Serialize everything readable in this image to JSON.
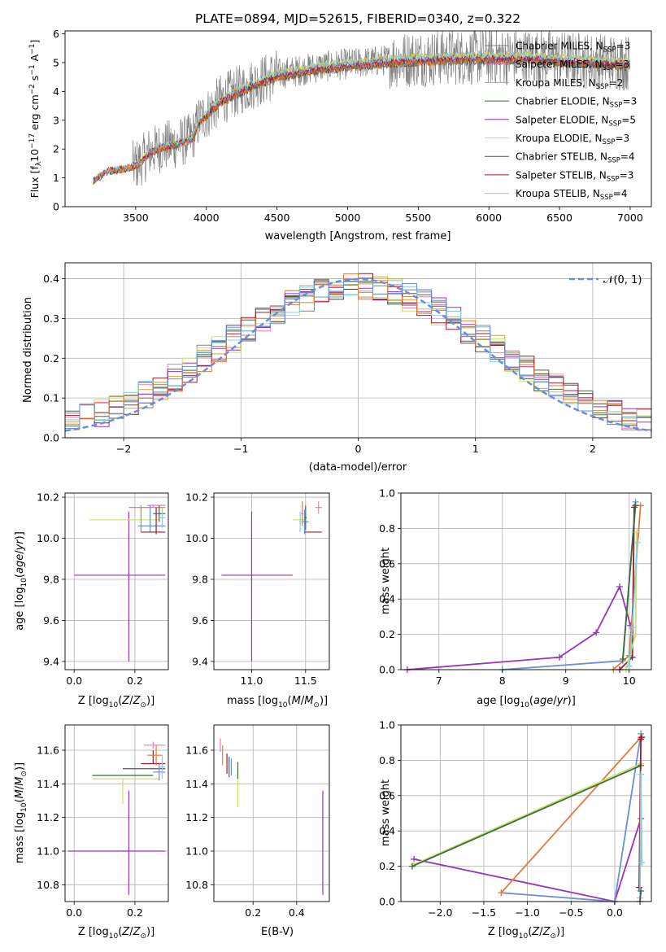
{
  "figure_title": "PLATE=0894, MJD=52615, FIBERID=0340, z=0.322",
  "colors": {
    "gray": "#808080",
    "orange": "#e07b39",
    "pink": "#e87fbf",
    "amber": "#d9a23b",
    "darkgreen": "#3f6b3f",
    "purple": "#9a33b5",
    "lime": "#c8e06c",
    "charcoal": "#555555",
    "crimson": "#a01a2a",
    "lightblue": "#7fd0e0",
    "blue": "#6a8fd8",
    "grid": "#b0b0b0"
  },
  "legend_entries": [
    {
      "label": "Chabrier MILES, N",
      "sub": "SSP",
      "tail": "=3",
      "color": "#808080"
    },
    {
      "label": "Salpeter MILES, N",
      "sub": "SSP",
      "tail": "=3",
      "color": "#e87fbf"
    },
    {
      "label": "Kroupa MILES, N",
      "sub": "SSP",
      "tail": "=2",
      "color": "#d9a23b"
    },
    {
      "label": "Chabrier ELODIE, N",
      "sub": "SSP",
      "tail": "=3",
      "color": "#3f6b3f"
    },
    {
      "label": "Salpeter ELODIE, N",
      "sub": "SSP",
      "tail": "=5",
      "color": "#9a33b5"
    },
    {
      "label": "Kroupa ELODIE, N",
      "sub": "SSP",
      "tail": "=3",
      "color": "#c8e06c"
    },
    {
      "label": "Chabrier STELIB, N",
      "sub": "SSP",
      "tail": "=4",
      "color": "#555555"
    },
    {
      "label": "Salpeter STELIB, N",
      "sub": "SSP",
      "tail": "=3",
      "color": "#a01a2a"
    },
    {
      "label": "Kroupa STELIB, N",
      "sub": "SSP",
      "tail": "=4",
      "color": "#7fd0e0"
    }
  ],
  "chart_data": [
    {
      "id": "spectrum",
      "type": "line",
      "xlabel": "wavelength [Angstrom, rest frame]",
      "ylabel": "Flux [f",
      "xlim": [
        3000,
        7150
      ],
      "ylim": [
        0,
        6.1
      ],
      "xticks": [
        3500,
        4000,
        4500,
        5000,
        5500,
        6000,
        6500,
        7000
      ],
      "yticks": [
        0,
        1,
        2,
        3,
        4,
        5,
        6
      ],
      "grid": false,
      "continuum_knots": {
        "x": [
          3200,
          3300,
          3450,
          3520,
          3600,
          3700,
          3800,
          3900,
          3950,
          4000,
          4100,
          4300,
          4500,
          4800,
          5000,
          5200,
          5500,
          5800,
          6000,
          6300,
          6600,
          7000
        ],
        "y": [
          0.9,
          1.25,
          1.35,
          1.5,
          1.9,
          2.1,
          2.2,
          2.4,
          3.0,
          3.2,
          3.7,
          4.2,
          4.6,
          4.85,
          4.95,
          5.05,
          5.15,
          5.2,
          5.2,
          5.2,
          5.1,
          5.0
        ]
      },
      "legend_placement": "right"
    },
    {
      "id": "residuals",
      "type": "line",
      "xlabel": "(data-model)/error",
      "ylabel": "Normed distribution",
      "xlim": [
        -2.5,
        2.5
      ],
      "ylim": [
        0,
        0.44
      ],
      "xticks": [
        -2,
        -1,
        0,
        1,
        2
      ],
      "yticks": [
        0.0,
        0.1,
        0.2,
        0.3,
        0.4
      ],
      "grid": true,
      "gaussian": {
        "label": "𝒩(0, 1)",
        "mu": 0,
        "sigma": 1
      },
      "histogram_bins": 40,
      "legend_placement": "top-right"
    },
    {
      "id": "age_vs_Z",
      "type": "scatter",
      "xlabel": "Z [log",
      "ylabel": "age  [log",
      "xlim": [
        -0.03,
        0.31
      ],
      "ylim": [
        9.36,
        10.22
      ],
      "xticks": [
        0.0,
        0.2
      ],
      "yticks": [
        9.4,
        9.6,
        9.8,
        10.0,
        10.2
      ],
      "grid": true,
      "points": [
        {
          "x": 0.18,
          "y": 9.82,
          "xerr": [
            0.18,
            0.12
          ],
          "yerr": [
            0.42,
            0.31
          ],
          "color": "#9a33b5"
        },
        {
          "x": 0.16,
          "y": 10.09,
          "xerr": [
            0.11,
            0.12
          ],
          "yerr": [
            0.0,
            0.0
          ],
          "color": "#c8e06c"
        },
        {
          "x": 0.22,
          "y": 10.15,
          "xerr": [
            0.04,
            0.08
          ],
          "yerr": [
            0.12,
            0.01
          ],
          "color": "#e07b39"
        },
        {
          "x": 0.26,
          "y": 10.16,
          "xerr": [
            0.02,
            0.04
          ],
          "yerr": [
            0.01,
            0.005
          ],
          "color": "#e87fbf"
        },
        {
          "x": 0.25,
          "y": 10.06,
          "xerr": [
            0.04,
            0.05
          ],
          "yerr": [
            0.03,
            0.1
          ],
          "color": "#6a8fd8"
        },
        {
          "x": 0.27,
          "y": 10.03,
          "xerr": [
            0.05,
            0.03
          ],
          "yerr": [
            0.01,
            0.12
          ],
          "color": "#a01a2a"
        },
        {
          "x": 0.28,
          "y": 10.12,
          "xerr": [
            0.02,
            0.02
          ],
          "yerr": [
            0.04,
            0.04
          ],
          "color": "#3f6b3f"
        },
        {
          "x": 0.29,
          "y": 10.1,
          "xerr": [
            0.01,
            0.01
          ],
          "yerr": [
            0.05,
            0.05
          ],
          "color": "#7fd0e0"
        }
      ]
    },
    {
      "id": "age_vs_mass",
      "type": "scatter",
      "xlabel": "mass [log",
      "ylabel": "",
      "xlim": [
        10.65,
        11.72
      ],
      "ylim": [
        9.36,
        10.22
      ],
      "xticks": [
        11.0,
        11.5
      ],
      "yticks": [
        9.4,
        9.6,
        9.8,
        10.0,
        10.2
      ],
      "grid": true,
      "points": [
        {
          "x": 11.0,
          "y": 9.82,
          "xerr": [
            0.28,
            0.38
          ],
          "yerr": [
            0.42,
            0.31
          ],
          "color": "#9a33b5"
        },
        {
          "x": 11.44,
          "y": 10.09,
          "xerr": [
            0.06,
            0.06
          ],
          "yerr": [
            0.0,
            0.0
          ],
          "color": "#c8e06c"
        },
        {
          "x": 11.49,
          "y": 10.08,
          "xerr": [
            0.02,
            0.04
          ],
          "yerr": [
            0.06,
            0.06
          ],
          "color": "#6a8fd8"
        },
        {
          "x": 11.52,
          "y": 10.03,
          "xerr": [
            0.03,
            0.13
          ],
          "yerr": [
            0.0,
            0.0
          ],
          "color": "#a01a2a"
        },
        {
          "x": 11.5,
          "y": 10.1,
          "xerr": [
            0.01,
            0.01
          ],
          "yerr": [
            0.06,
            0.06
          ],
          "color": "#3f6b3f"
        },
        {
          "x": 11.47,
          "y": 10.12,
          "xerr": [
            0.01,
            0.01
          ],
          "yerr": [
            0.06,
            0.06
          ],
          "color": "#e07b39"
        },
        {
          "x": 11.62,
          "y": 10.15,
          "xerr": [
            0.03,
            0.03
          ],
          "yerr": [
            0.03,
            0.03
          ],
          "color": "#e87fbf"
        },
        {
          "x": 11.45,
          "y": 10.08,
          "xerr": [
            0.01,
            0.01
          ],
          "yerr": [
            0.05,
            0.05
          ],
          "color": "#7fd0e0"
        }
      ]
    },
    {
      "id": "massweight_vs_age",
      "type": "line",
      "xlabel": "age  [log",
      "ylabel": "mass weight",
      "xlim": [
        6.4,
        10.35
      ],
      "ylim": [
        0,
        1.0
      ],
      "xticks": [
        7,
        8,
        9,
        10
      ],
      "yticks": [
        0.0,
        0.2,
        0.4,
        0.6,
        0.8,
        1.0
      ],
      "grid": true,
      "series": [
        {
          "color": "#9a33b5",
          "x": [
            6.5,
            8.9,
            9.48,
            9.85,
            10.02
          ],
          "y": [
            0.0,
            0.07,
            0.21,
            0.47,
            0.25
          ]
        },
        {
          "color": "#6a8fd8",
          "x": [
            8.0,
            9.9,
            10.1
          ],
          "y": [
            0.0,
            0.05,
            0.95
          ]
        },
        {
          "color": "#e07b39",
          "x": [
            9.75,
            10.0,
            10.18
          ],
          "y": [
            0.0,
            0.08,
            0.93
          ]
        },
        {
          "color": "#a01a2a",
          "x": [
            9.85,
            10.05,
            10.08
          ],
          "y": [
            0.0,
            0.07,
            0.92
          ]
        },
        {
          "color": "#c8e06c",
          "x": [
            9.95,
            10.1,
            10.12
          ],
          "y": [
            0.0,
            0.2,
            0.78
          ]
        },
        {
          "color": "#7fd0e0",
          "x": [
            10.0,
            10.05,
            10.13
          ],
          "y": [
            0.02,
            0.24,
            0.72
          ]
        },
        {
          "color": "#3f6b3f",
          "x": [
            9.9,
            10.1
          ],
          "y": [
            0.06,
            0.93
          ]
        }
      ]
    },
    {
      "id": "mass_vs_Z",
      "type": "scatter",
      "xlabel": "Z [log",
      "ylabel": "mass [log",
      "xlim": [
        -0.03,
        0.31
      ],
      "ylim": [
        10.7,
        11.75
      ],
      "xticks": [
        0.0,
        0.2
      ],
      "yticks": [
        10.8,
        11.0,
        11.2,
        11.4,
        11.6
      ],
      "grid": true,
      "points": [
        {
          "x": 0.18,
          "y": 11.0,
          "xerr": [
            0.2,
            0.12
          ],
          "yerr": [
            0.26,
            0.36
          ],
          "color": "#9a33b5"
        },
        {
          "x": 0.16,
          "y": 11.43,
          "xerr": [
            0.1,
            0.12
          ],
          "yerr": [
            0.15,
            0.0
          ],
          "color": "#c8e06c"
        },
        {
          "x": 0.2,
          "y": 11.45,
          "xerr": [
            0.14,
            0.06
          ],
          "yerr": [
            0.0,
            0.0
          ],
          "color": "#3f6b3f"
        },
        {
          "x": 0.25,
          "y": 11.49,
          "xerr": [
            0.09,
            0.05
          ],
          "yerr": [
            0.0,
            0.0
          ],
          "color": "#555555"
        },
        {
          "x": 0.26,
          "y": 11.52,
          "xerr": [
            0.04,
            0.04
          ],
          "yerr": [
            0.0,
            0.08
          ],
          "color": "#a01a2a"
        },
        {
          "x": 0.26,
          "y": 11.63,
          "xerr": [
            0.03,
            0.04
          ],
          "yerr": [
            0.02,
            0.02
          ],
          "color": "#e87fbf"
        },
        {
          "x": 0.27,
          "y": 11.57,
          "xerr": [
            0.03,
            0.02
          ],
          "yerr": [
            0.06,
            0.06
          ],
          "color": "#e07b39"
        },
        {
          "x": 0.28,
          "y": 11.47,
          "xerr": [
            0.02,
            0.02
          ],
          "yerr": [
            0.05,
            0.05
          ],
          "color": "#6a8fd8"
        },
        {
          "x": 0.29,
          "y": 11.5,
          "xerr": [
            0.01,
            0.01
          ],
          "yerr": [
            0.07,
            0.07
          ],
          "color": "#7fd0e0"
        }
      ]
    },
    {
      "id": "mass_vs_ebv",
      "type": "scatter",
      "xlabel": "E(B-V)",
      "ylabel": "",
      "xlim": [
        0.02,
        0.55
      ],
      "ylim": [
        10.7,
        11.75
      ],
      "xticks": [
        0.2,
        0.4
      ],
      "yticks": [
        10.8,
        11.0,
        11.2,
        11.4,
        11.6
      ],
      "grid": true,
      "points": [
        {
          "x": 0.52,
          "y": 11.0,
          "xerr": [
            0,
            0
          ],
          "yerr": [
            0.26,
            0.36
          ],
          "color": "#9a33b5"
        },
        {
          "x": 0.13,
          "y": 11.4,
          "xerr": [
            0,
            0
          ],
          "yerr": [
            0.14,
            0.1
          ],
          "color": "#c8e06c"
        },
        {
          "x": 0.13,
          "y": 11.48,
          "xerr": [
            0,
            0
          ],
          "yerr": [
            0.05,
            0.05
          ],
          "color": "#3f6b3f"
        },
        {
          "x": 0.09,
          "y": 11.5,
          "xerr": [
            0,
            0
          ],
          "yerr": [
            0.06,
            0.06
          ],
          "color": "#555555"
        },
        {
          "x": 0.08,
          "y": 11.52,
          "xerr": [
            0,
            0
          ],
          "yerr": [
            0.06,
            0.06
          ],
          "color": "#a01a2a"
        },
        {
          "x": 0.06,
          "y": 11.57,
          "xerr": [
            0,
            0
          ],
          "yerr": [
            0.06,
            0.06
          ],
          "color": "#e07b39"
        },
        {
          "x": 0.05,
          "y": 11.63,
          "xerr": [
            0,
            0
          ],
          "yerr": [
            0.04,
            0.04
          ],
          "color": "#e87fbf"
        },
        {
          "x": 0.1,
          "y": 11.5,
          "xerr": [
            0,
            0
          ],
          "yerr": [
            0.05,
            0.05
          ],
          "color": "#6a8fd8"
        }
      ]
    },
    {
      "id": "massweight_vs_Z",
      "type": "line",
      "xlabel": "Z [log",
      "ylabel": "mass weight",
      "xlim": [
        -2.45,
        0.42
      ],
      "ylim": [
        0,
        1.0
      ],
      "xticks": [
        -2.0,
        -1.5,
        -1.0,
        -0.5,
        0.0
      ],
      "yticks": [
        0.0,
        0.2,
        0.4,
        0.6,
        0.8,
        1.0
      ],
      "grid": true,
      "series": [
        {
          "color": "#9a33b5",
          "x": [
            -2.3,
            0.0,
            0.3
          ],
          "y": [
            0.24,
            0.0,
            0.47
          ]
        },
        {
          "color": "#6a8fd8",
          "x": [
            -1.3,
            0.0,
            0.3
          ],
          "y": [
            0.05,
            0.0,
            0.95
          ]
        },
        {
          "color": "#e07b39",
          "x": [
            -1.3,
            0.3
          ],
          "y": [
            0.05,
            0.93
          ]
        },
        {
          "color": "#c8e06c",
          "x": [
            -2.3,
            0.3
          ],
          "y": [
            0.21,
            0.78
          ]
        },
        {
          "color": "#3f6b3f",
          "x": [
            -2.32,
            0.3
          ],
          "y": [
            0.2,
            0.77
          ]
        },
        {
          "color": "#a01a2a",
          "x": [
            0.28,
            0.3,
            0.31
          ],
          "y": [
            0.08,
            0.92,
            0.93
          ]
        },
        {
          "color": "#7fd0e0",
          "x": [
            0.29,
            0.3,
            0.31
          ],
          "y": [
            0.02,
            0.72,
            0.22
          ]
        },
        {
          "color": "#555555",
          "x": [
            0.29,
            0.3
          ],
          "y": [
            0.0,
            0.06
          ]
        }
      ]
    }
  ]
}
